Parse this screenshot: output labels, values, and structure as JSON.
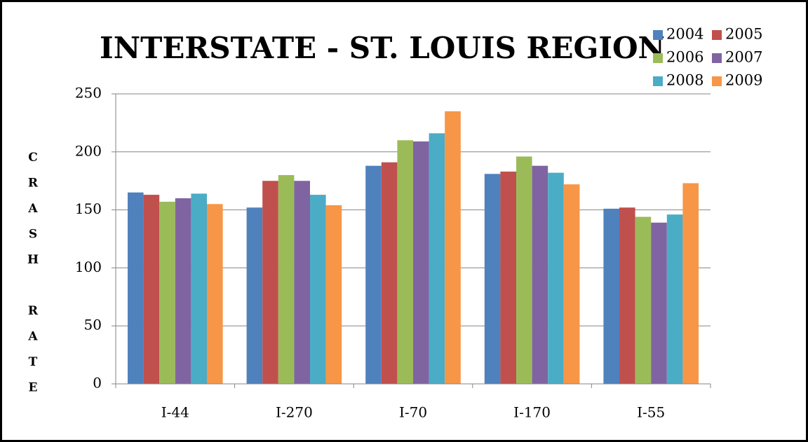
{
  "chart_data": {
    "type": "bar",
    "title": "INTERSTATE - ST. LOUIS REGION",
    "y_label": "CRASH RATE",
    "categories": [
      "I-44",
      "I-270",
      "I-70",
      "I-170",
      "I-55"
    ],
    "series": [
      {
        "name": "2004",
        "color": "#4f81bd",
        "values": [
          165,
          152,
          188,
          181,
          151
        ]
      },
      {
        "name": "2005",
        "color": "#c0504d",
        "values": [
          163,
          175,
          191,
          183,
          152
        ]
      },
      {
        "name": "2006",
        "color": "#9bbb59",
        "values": [
          157,
          180,
          210,
          196,
          144
        ]
      },
      {
        "name": "2007",
        "color": "#8064a2",
        "values": [
          160,
          175,
          209,
          188,
          139
        ]
      },
      {
        "name": "2008",
        "color": "#4bacc6",
        "values": [
          164,
          163,
          216,
          182,
          146
        ]
      },
      {
        "name": "2009",
        "color": "#f79646",
        "values": [
          155,
          154,
          235,
          172,
          173
        ]
      }
    ],
    "ylim": [
      0,
      250
    ],
    "yticks": [
      0,
      50,
      100,
      150,
      200,
      250
    ],
    "grid": true,
    "legend": "top-right"
  }
}
